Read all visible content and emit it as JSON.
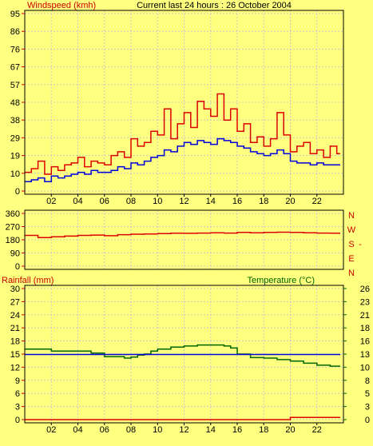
{
  "colors": {
    "background": "#ffff80",
    "panel_bg": "#ffff80",
    "frame": "#000000",
    "grid": "#c8c8c8",
    "red": "#dd0000",
    "blue": "#0000dd",
    "green": "#006600",
    "tick_green": "#006600",
    "tick_red": "#cc0000"
  },
  "chart_data": [
    {
      "type": "line",
      "title": "Current last 24 hours : 26 October 2004",
      "ylabel": "Windspeed (kmh)",
      "ylim": [
        0,
        95
      ],
      "y_ticks": [
        "0",
        "10",
        "19",
        "29",
        "38",
        "48",
        "57",
        "67",
        "76",
        "86",
        "95"
      ],
      "xlim": [
        0,
        24
      ],
      "x_ticks": [
        "02",
        "04",
        "06",
        "08",
        "10",
        "12",
        "14",
        "16",
        "18",
        "20",
        "22"
      ],
      "grid": true,
      "series": [
        {
          "color": "#dd0000",
          "x": [
            0,
            0.5,
            1,
            1.5,
            2,
            2.5,
            3,
            3.5,
            4,
            4.5,
            5,
            5.5,
            6,
            6.5,
            7,
            7.5,
            8,
            8.5,
            9,
            9.5,
            10,
            10.5,
            11,
            11.5,
            12,
            12.5,
            13,
            13.5,
            14,
            14.5,
            15,
            15.5,
            16,
            16.5,
            17,
            17.5,
            18,
            18.5,
            19,
            19.5,
            20,
            20.5,
            21,
            21.5,
            22,
            22.5,
            23,
            23.5
          ],
          "values": [
            10,
            12,
            16,
            9,
            13,
            11,
            14,
            15,
            18,
            13,
            16,
            15,
            14,
            19,
            21,
            18,
            28,
            24,
            26,
            32,
            30,
            44,
            28,
            36,
            42,
            34,
            48,
            44,
            40,
            52,
            38,
            44,
            32,
            36,
            26,
            29,
            24,
            28,
            42,
            30,
            21,
            24,
            26,
            20,
            22,
            18,
            24,
            20
          ]
        },
        {
          "color": "#0000dd",
          "x": [
            0,
            0.5,
            1,
            1.5,
            2,
            2.5,
            3,
            3.5,
            4,
            4.5,
            5,
            5.5,
            6,
            6.5,
            7,
            7.5,
            8,
            8.5,
            9,
            9.5,
            10,
            10.5,
            11,
            11.5,
            12,
            12.5,
            13,
            13.5,
            14,
            14.5,
            15,
            15.5,
            16,
            16.5,
            17,
            17.5,
            18,
            18.5,
            19,
            19.5,
            20,
            20.5,
            21,
            21.5,
            22,
            22.5,
            23,
            23.5
          ],
          "values": [
            5,
            6,
            7,
            5,
            8,
            7,
            8,
            9,
            10,
            9,
            11,
            10,
            10,
            11,
            13,
            12,
            15,
            14,
            16,
            18,
            19,
            22,
            21,
            24,
            26,
            25,
            27,
            26,
            25,
            28,
            27,
            26,
            24,
            23,
            21,
            20,
            19,
            20,
            22,
            20,
            16,
            15,
            15,
            14,
            15,
            14,
            14,
            14
          ]
        }
      ]
    },
    {
      "type": "line",
      "ylim": [
        0,
        360
      ],
      "y_ticks": [
        "0",
        "90",
        "180",
        "270",
        "360"
      ],
      "right_labels": [
        "N",
        "W",
        "S",
        "E",
        "N"
      ],
      "xlim": [
        0,
        24
      ],
      "grid": true,
      "series": [
        {
          "color": "#dd0000",
          "x": [
            0,
            1,
            2,
            3,
            4,
            5,
            6,
            7,
            8,
            9,
            10,
            11,
            12,
            13,
            14,
            15,
            16,
            17,
            18,
            19,
            20,
            21,
            22,
            23,
            23.5
          ],
          "values": [
            210,
            195,
            200,
            205,
            210,
            212,
            208,
            215,
            218,
            220,
            222,
            225,
            224,
            226,
            228,
            226,
            230,
            228,
            230,
            232,
            230,
            228,
            226,
            225,
            225
          ]
        }
      ]
    },
    {
      "type": "line",
      "ylabel": "Rainfall (mm)",
      "y2label": "Temperature (°C)",
      "ylim": [
        0,
        30
      ],
      "y_ticks": [
        "0",
        "3",
        "6",
        "9",
        "12",
        "15",
        "18",
        "21",
        "24",
        "27",
        "30"
      ],
      "y2lim": [
        0,
        26
      ],
      "y2_ticks": [
        "0",
        "3",
        "5",
        "8",
        "10",
        "13",
        "16",
        "18",
        "21",
        "23",
        "26"
      ],
      "xlim": [
        0,
        24
      ],
      "x_ticks": [
        "02",
        "04",
        "06",
        "08",
        "10",
        "12",
        "14",
        "16",
        "18",
        "20",
        "22"
      ],
      "grid": true,
      "series": [
        {
          "color": "#006600",
          "axis": "right",
          "x": [
            0,
            1,
            2,
            3,
            4,
            5,
            6,
            7,
            7.5,
            8,
            8.5,
            9,
            9.5,
            10,
            11,
            12,
            13,
            14,
            15,
            15.5,
            16,
            17,
            18,
            19,
            20,
            21,
            22,
            23,
            23.5
          ],
          "values": [
            14.0,
            14.0,
            13.6,
            13.6,
            13.6,
            13.2,
            12.5,
            12.5,
            12.2,
            12.4,
            12.8,
            13.0,
            13.6,
            14.0,
            14.4,
            14.6,
            14.8,
            14.8,
            14.6,
            14.2,
            13.0,
            12.3,
            12.2,
            11.9,
            11.6,
            11.2,
            10.8,
            10.6,
            10.6
          ]
        },
        {
          "color": "#0000dd",
          "axis": "left",
          "x": [
            0,
            23.5
          ],
          "values": [
            14.9,
            14.9
          ]
        },
        {
          "color": "#dd0000",
          "axis": "left",
          "x": [
            0,
            19.8,
            20,
            23.5
          ],
          "values": [
            0,
            0,
            0.5,
            0.5
          ]
        }
      ]
    }
  ]
}
